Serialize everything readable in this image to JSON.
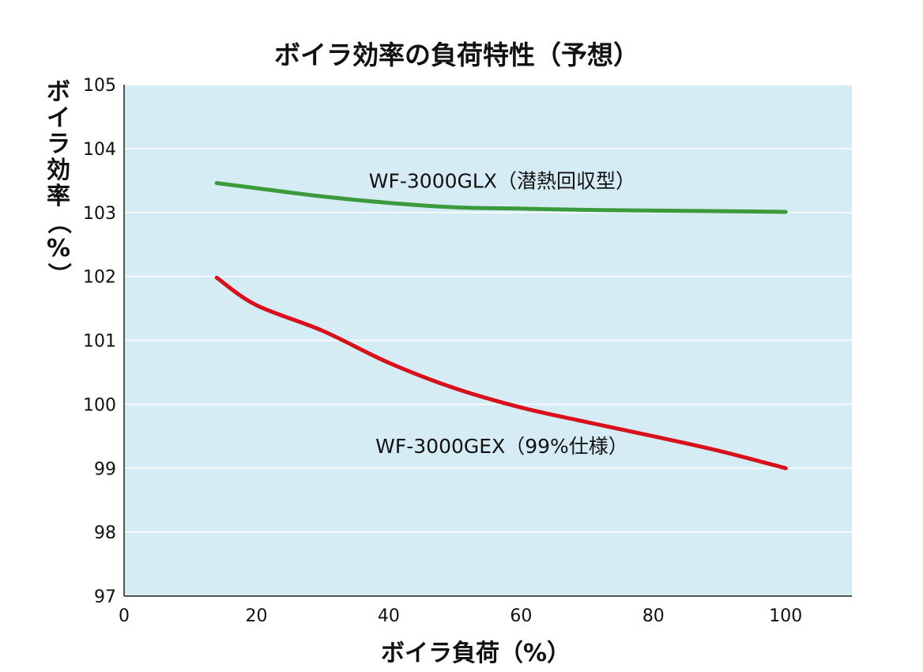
{
  "chart_data": {
    "type": "line",
    "title": "ボイラ効率の負荷特性（予想）",
    "xlabel": "ボイラ負荷（%）",
    "ylabel_chars": [
      "ボ",
      "イ",
      "ラ",
      "効",
      "率",
      "（",
      "%",
      "）"
    ],
    "xlim": [
      0,
      110
    ],
    "ylim": [
      97,
      105
    ],
    "x_ticks": [
      "0",
      "20",
      "40",
      "60",
      "80",
      "100"
    ],
    "y_ticks": [
      "97",
      "98",
      "99",
      "100",
      "101",
      "102",
      "103",
      "104",
      "105"
    ],
    "grid": true,
    "background_color": "#d6ecf5",
    "series": [
      {
        "name": "WF-3000GLX（潜熱回収型）",
        "color": "#3a9a3c",
        "x": [
          14,
          20,
          30,
          40,
          50,
          60,
          70,
          80,
          90,
          100
        ],
        "y": [
          103.46,
          103.38,
          103.25,
          103.15,
          103.08,
          103.06,
          103.04,
          103.03,
          103.02,
          103.01
        ],
        "label_anchor": {
          "x": 37,
          "y": 103.5
        }
      },
      {
        "name": "WF-3000GEX（99%仕様）",
        "color": "#d8101c",
        "x": [
          14,
          20,
          30,
          40,
          50,
          60,
          70,
          80,
          90,
          100
        ],
        "y": [
          101.98,
          101.55,
          101.15,
          100.65,
          100.25,
          99.95,
          99.72,
          99.5,
          99.27,
          99.0
        ],
        "label_anchor": {
          "x": 38,
          "y": 99.35
        }
      }
    ]
  }
}
